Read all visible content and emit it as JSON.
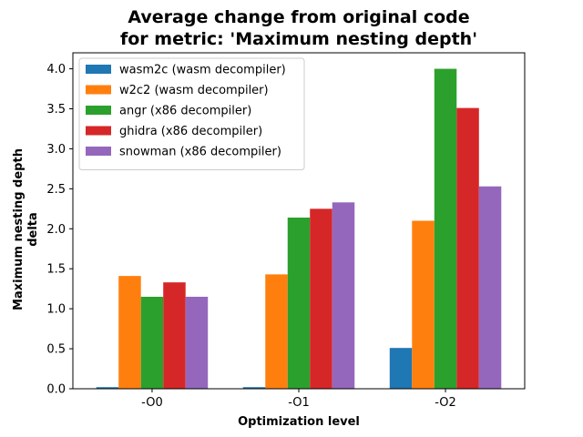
{
  "chart_data": {
    "type": "bar",
    "title_lines": [
      "Average change from original code",
      "for metric: 'Maximum nesting depth'"
    ],
    "xlabel": "Optimization level",
    "ylabel_lines": [
      "Maximum nesting depth",
      "delta"
    ],
    "categories": [
      "-O0",
      "-O1",
      "-O2"
    ],
    "ylim": [
      0,
      4.2
    ],
    "yticks": [
      "0.0",
      "0.5",
      "1.0",
      "1.5",
      "2.0",
      "2.5",
      "3.0",
      "3.5",
      "4.0"
    ],
    "grid": false,
    "legend_position": "top-left",
    "series": [
      {
        "name": "wasm2c (wasm decompiler)",
        "color": "#1f77b4",
        "values": [
          0.02,
          0.02,
          0.51
        ]
      },
      {
        "name": "w2c2 (wasm decompiler)",
        "color": "#ff7f0e",
        "values": [
          1.41,
          1.43,
          2.1
        ]
      },
      {
        "name": "angr (x86 decompiler)",
        "color": "#2ca02c",
        "values": [
          1.15,
          2.14,
          4.0
        ]
      },
      {
        "name": "ghidra (x86 decompiler)",
        "color": "#d62728",
        "values": [
          1.33,
          2.25,
          3.51
        ]
      },
      {
        "name": "snowman (x86 decompiler)",
        "color": "#9467bd",
        "values": [
          1.15,
          2.33,
          2.53
        ]
      }
    ]
  }
}
